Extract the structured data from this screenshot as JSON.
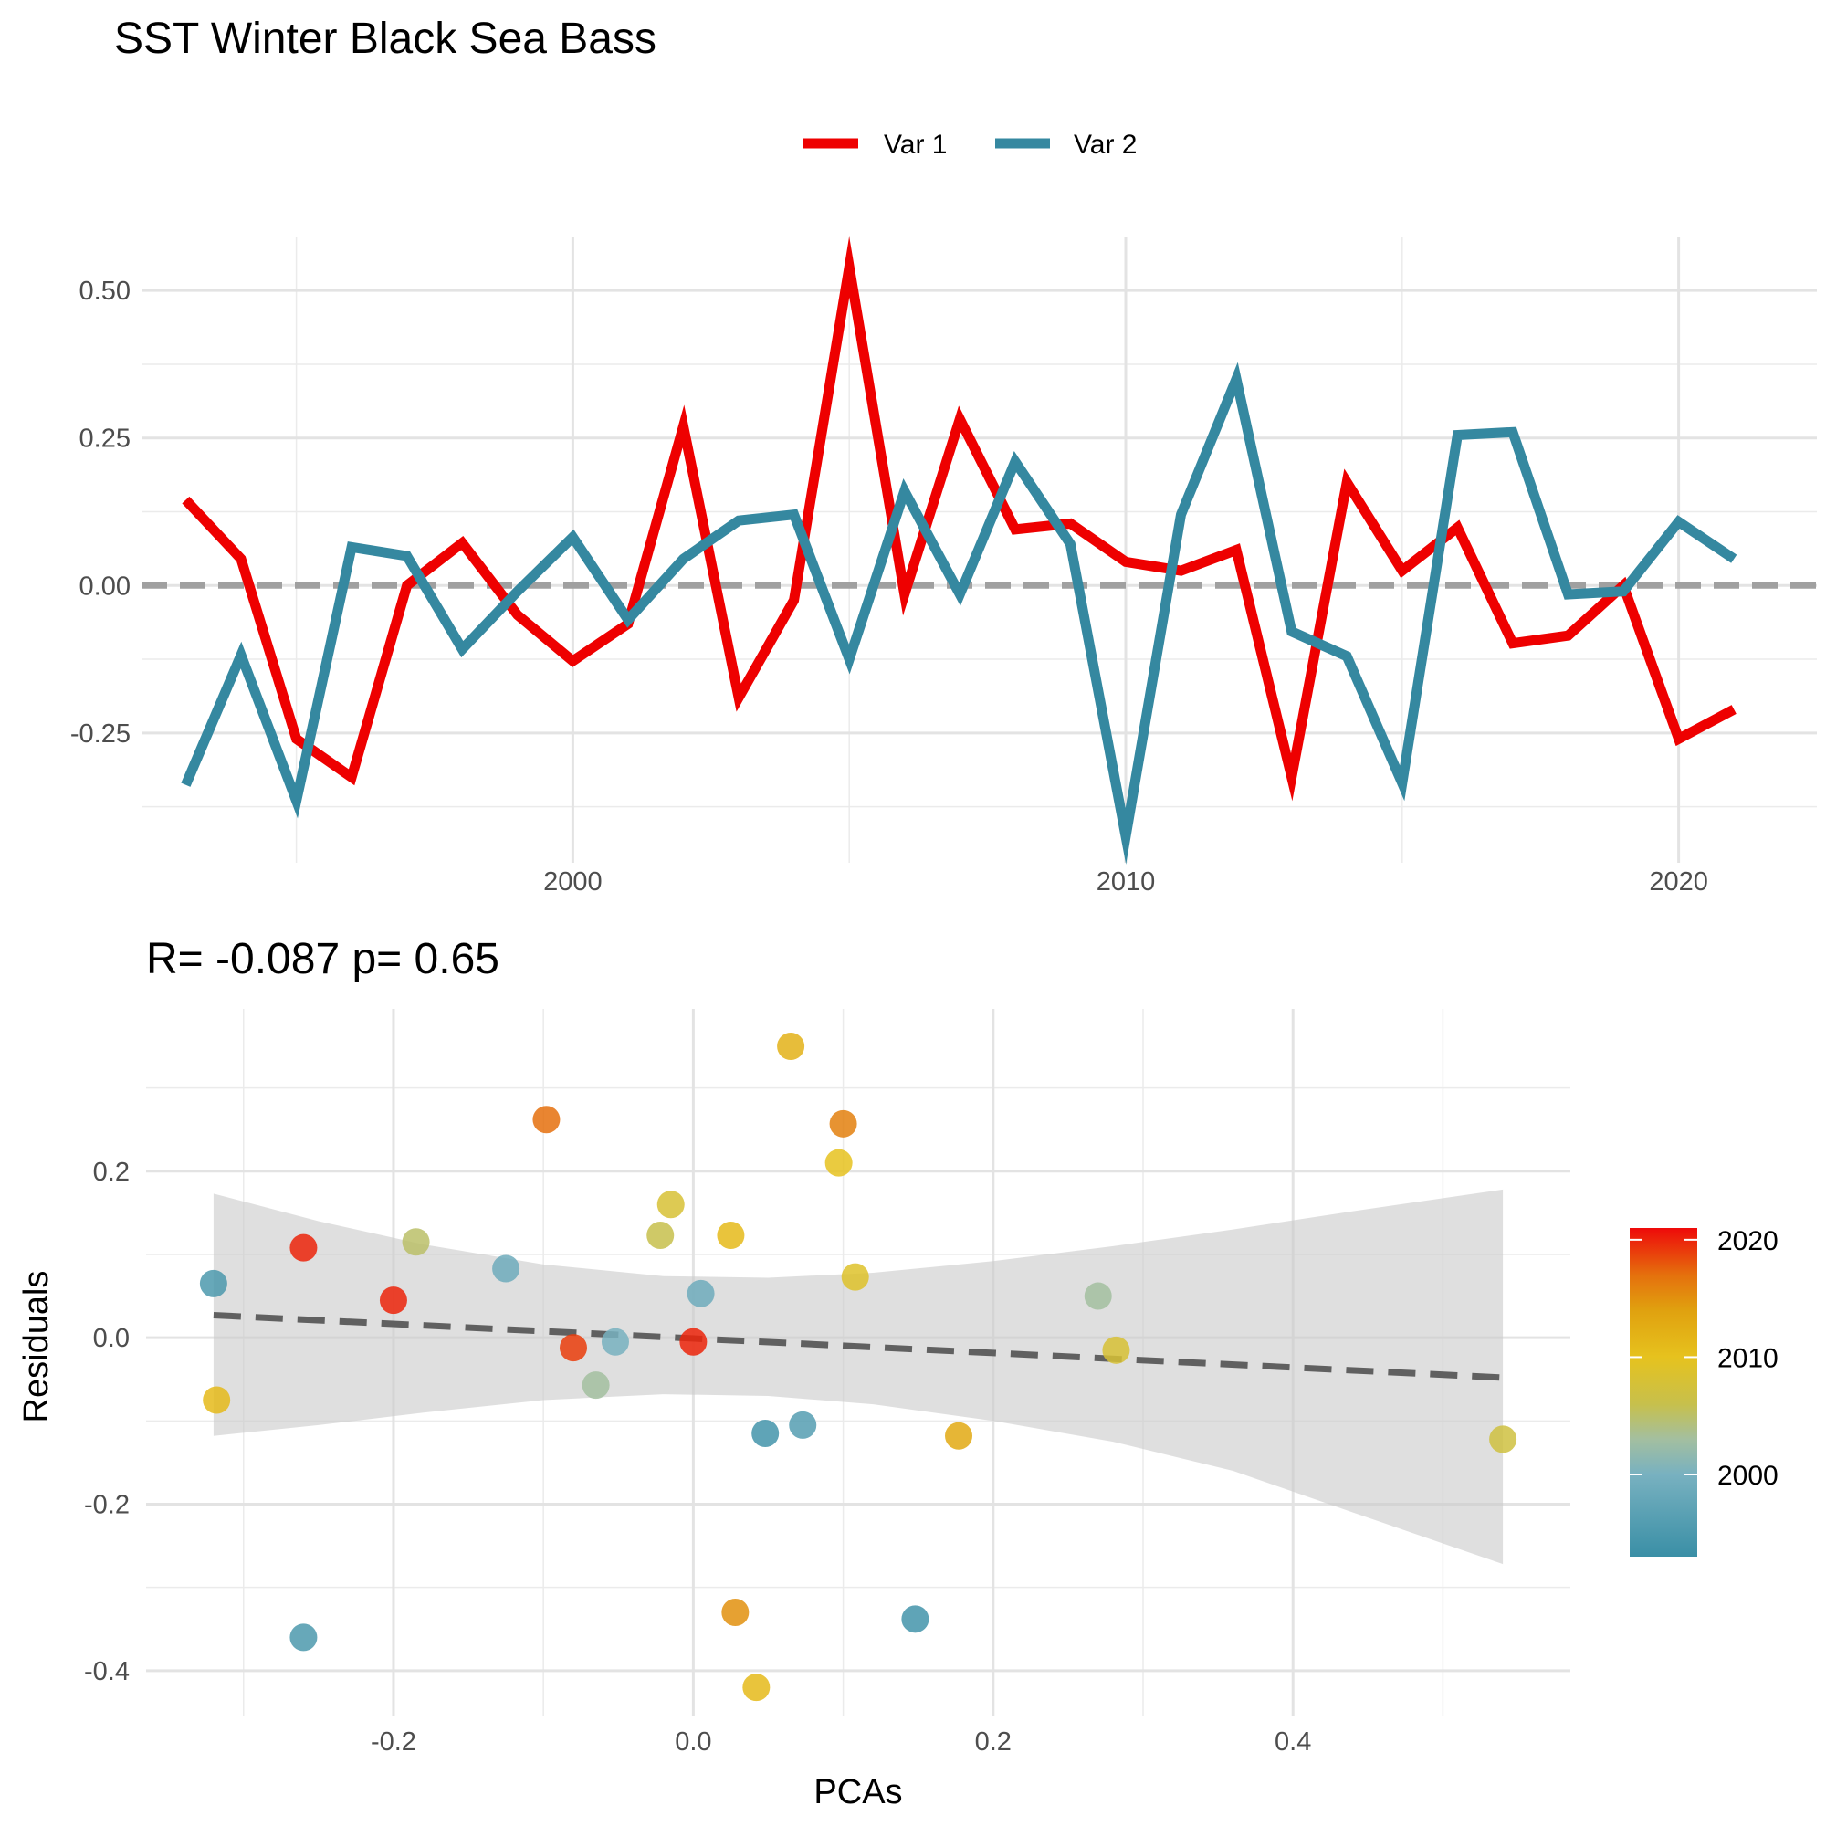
{
  "title": "SST Winter Black Sea Bass",
  "chart_data": [
    {
      "type": "line",
      "title": "",
      "xlabel": "",
      "ylabel": "",
      "legend_position": "top",
      "xlim": [
        1992.2,
        2022.5
      ],
      "ylim": [
        -0.47,
        0.59
      ],
      "x_ticks": [
        2000,
        2010,
        2020
      ],
      "y_ticks": [
        -0.25,
        0.0,
        0.25,
        0.5
      ],
      "y_tick_labels": [
        "-0.25",
        "0.00",
        "0.25",
        "0.50"
      ],
      "reference_line": 0,
      "x": [
        1993,
        1994,
        1995,
        1996,
        1997,
        1998,
        1999,
        2000,
        2001,
        2002,
        2003,
        2004,
        2005,
        2006,
        2007,
        2008,
        2009,
        2010,
        2011,
        2012,
        2013,
        2014,
        2015,
        2016,
        2017,
        2018,
        2019,
        2020,
        2021
      ],
      "series": [
        {
          "name": "Var 1",
          "color": "#ee0000",
          "values": [
            0.145,
            0.045,
            -0.26,
            -0.325,
            0.0,
            0.072,
            -0.05,
            -0.128,
            -0.065,
            0.27,
            -0.19,
            -0.025,
            0.54,
            -0.015,
            0.282,
            0.095,
            0.105,
            0.04,
            0.025,
            0.06,
            -0.325,
            0.175,
            0.025,
            0.098,
            -0.098,
            -0.085,
            0.0,
            -0.26,
            -0.21
          ]
        },
        {
          "name": "Var 2",
          "color": "#3588a0",
          "values": [
            -0.338,
            -0.118,
            -0.365,
            0.065,
            0.05,
            -0.108,
            -0.01,
            0.082,
            -0.058,
            0.045,
            0.11,
            0.12,
            -0.125,
            0.16,
            -0.015,
            0.21,
            0.07,
            -0.425,
            0.12,
            0.35,
            -0.078,
            -0.12,
            -0.335,
            0.255,
            0.26,
            -0.015,
            -0.01,
            0.108,
            0.045
          ]
        }
      ]
    },
    {
      "type": "scatter",
      "title": "R= -0.087  p= 0.65",
      "xlabel": "PCAs",
      "ylabel": "Residuals",
      "xlim": [
        -0.365,
        0.585
      ],
      "ylim": [
        -0.455,
        0.395
      ],
      "x_ticks": [
        -0.2,
        0.0,
        0.2,
        0.4
      ],
      "x_tick_labels": [
        "-0.2",
        "0.0",
        "0.2",
        "0.4"
      ],
      "y_ticks": [
        -0.4,
        -0.2,
        0.0,
        0.2
      ],
      "y_tick_labels": [
        "-0.4",
        "-0.2",
        "0.0",
        "0.2"
      ],
      "color_scale": {
        "title": "",
        "min": 1993,
        "max": 2021,
        "ticks": [
          2000,
          2010,
          2020
        ],
        "stops": [
          {
            "v": 1993,
            "c": "#3a8fa6"
          },
          {
            "v": 2000,
            "c": "#78b1c0"
          },
          {
            "v": 2003,
            "c": "#a3bfa0"
          },
          {
            "v": 2006,
            "c": "#c7c04c"
          },
          {
            "v": 2010,
            "c": "#e6c21e"
          },
          {
            "v": 2014,
            "c": "#e0a10f"
          },
          {
            "v": 2017,
            "c": "#e5700d"
          },
          {
            "v": 2021,
            "c": "#ee0a0a"
          }
        ]
      },
      "trend": {
        "x": [
          -0.32,
          0.54
        ],
        "y": [
          0.027,
          -0.048
        ]
      },
      "confidence_band": {
        "x": [
          -0.32,
          -0.25,
          -0.18,
          -0.1,
          -0.02,
          0.05,
          0.12,
          0.2,
          0.28,
          0.36,
          0.44,
          0.54
        ],
        "upper": [
          0.173,
          0.14,
          0.112,
          0.088,
          0.074,
          0.072,
          0.078,
          0.092,
          0.11,
          0.13,
          0.152,
          0.178
        ],
        "lower": [
          -0.118,
          -0.105,
          -0.09,
          -0.075,
          -0.068,
          -0.07,
          -0.08,
          -0.1,
          -0.125,
          -0.16,
          -0.21,
          -0.272
        ]
      },
      "points": [
        {
          "x": -0.32,
          "y": 0.065,
          "year": 1995
        },
        {
          "x": -0.318,
          "y": -0.075,
          "year": 2011
        },
        {
          "x": -0.26,
          "y": 0.108,
          "year": 2020
        },
        {
          "x": -0.26,
          "y": -0.36,
          "year": 1995
        },
        {
          "x": -0.2,
          "y": 0.045,
          "year": 2020
        },
        {
          "x": -0.185,
          "y": 0.115,
          "year": 2005
        },
        {
          "x": -0.125,
          "y": 0.083,
          "year": 1999
        },
        {
          "x": -0.098,
          "y": 0.262,
          "year": 2017
        },
        {
          "x": -0.08,
          "y": -0.012,
          "year": 2019
        },
        {
          "x": -0.065,
          "y": -0.057,
          "year": 2003
        },
        {
          "x": -0.052,
          "y": -0.005,
          "year": 2000
        },
        {
          "x": -0.022,
          "y": 0.123,
          "year": 2006
        },
        {
          "x": -0.015,
          "y": 0.16,
          "year": 2008
        },
        {
          "x": 0.0,
          "y": -0.005,
          "year": 2020
        },
        {
          "x": 0.005,
          "y": 0.053,
          "year": 1999
        },
        {
          "x": 0.025,
          "y": 0.123,
          "year": 2011
        },
        {
          "x": 0.028,
          "y": -0.33,
          "year": 2015
        },
        {
          "x": 0.042,
          "y": -0.42,
          "year": 2011
        },
        {
          "x": 0.048,
          "y": -0.115,
          "year": 1994
        },
        {
          "x": 0.065,
          "y": 0.35,
          "year": 2012
        },
        {
          "x": 0.073,
          "y": -0.105,
          "year": 1996
        },
        {
          "x": 0.097,
          "y": 0.21,
          "year": 2010
        },
        {
          "x": 0.1,
          "y": 0.257,
          "year": 2016
        },
        {
          "x": 0.108,
          "y": 0.073,
          "year": 2009
        },
        {
          "x": 0.148,
          "y": -0.338,
          "year": 1994
        },
        {
          "x": 0.177,
          "y": -0.118,
          "year": 2013
        },
        {
          "x": 0.27,
          "y": 0.05,
          "year": 2003
        },
        {
          "x": 0.282,
          "y": -0.015,
          "year": 2008
        },
        {
          "x": 0.54,
          "y": -0.122,
          "year": 2007
        }
      ]
    }
  ]
}
